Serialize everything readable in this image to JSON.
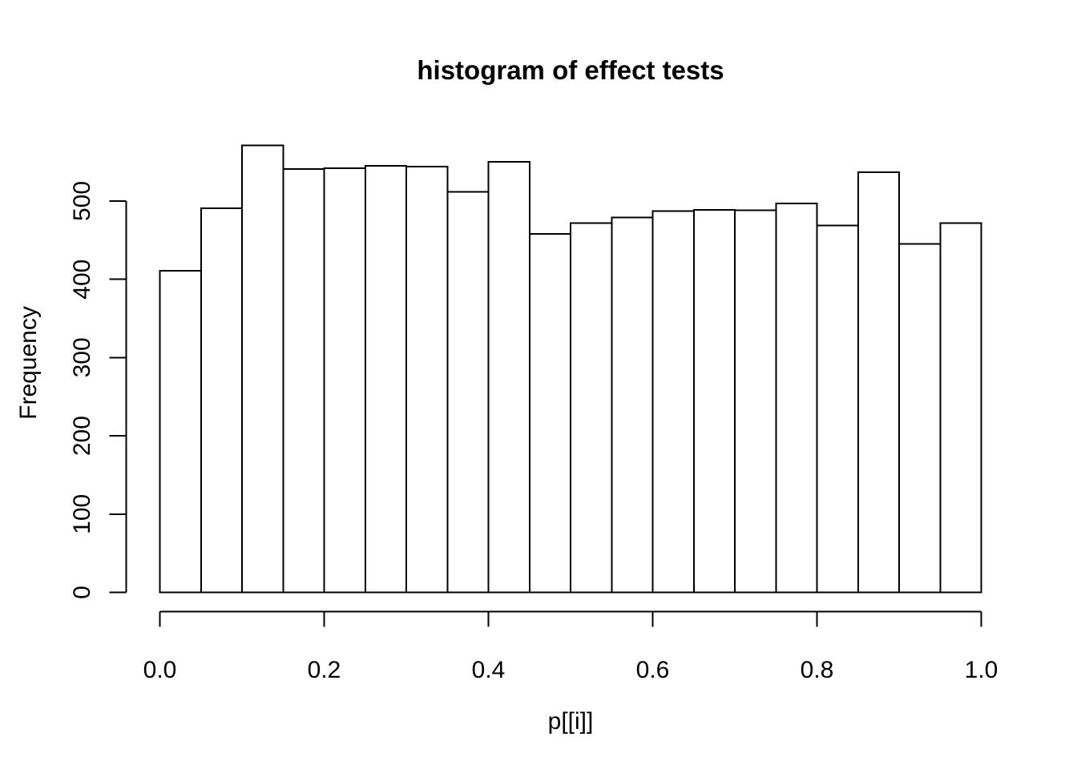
{
  "figure": {
    "background": "#ffffff",
    "foreground": "#000000"
  },
  "chart_data": {
    "type": "bar",
    "subtype": "histogram",
    "title": "histogram of effect tests",
    "xlabel": "p[[i]]",
    "ylabel": "Frequency",
    "bin_width": 0.05,
    "bin_edges": [
      0.0,
      0.05,
      0.1,
      0.15,
      0.2,
      0.25,
      0.3,
      0.35,
      0.4,
      0.45,
      0.5,
      0.55,
      0.6,
      0.65,
      0.7,
      0.75,
      0.8,
      0.85,
      0.9,
      0.95,
      1.0
    ],
    "values": [
      411,
      491,
      571,
      541,
      542,
      545,
      544,
      512,
      550,
      458,
      472,
      479,
      487,
      489,
      488,
      497,
      469,
      537,
      445,
      472
    ],
    "x_ticks": [
      0.0,
      0.2,
      0.4,
      0.6,
      0.8,
      1.0
    ],
    "x_tick_labels": [
      "0.0",
      "0.2",
      "0.4",
      "0.6",
      "0.8",
      "1.0"
    ],
    "y_ticks": [
      0,
      100,
      200,
      300,
      400,
      500
    ],
    "y_tick_labels": [
      "0",
      "100",
      "200",
      "300",
      "400",
      "500"
    ],
    "xlim": [
      0,
      1
    ],
    "ylim": [
      0,
      571
    ],
    "grid": false,
    "legend": "none",
    "bar_fill": "#ffffff",
    "bar_stroke": "#000000",
    "axis_color": "#000000"
  }
}
